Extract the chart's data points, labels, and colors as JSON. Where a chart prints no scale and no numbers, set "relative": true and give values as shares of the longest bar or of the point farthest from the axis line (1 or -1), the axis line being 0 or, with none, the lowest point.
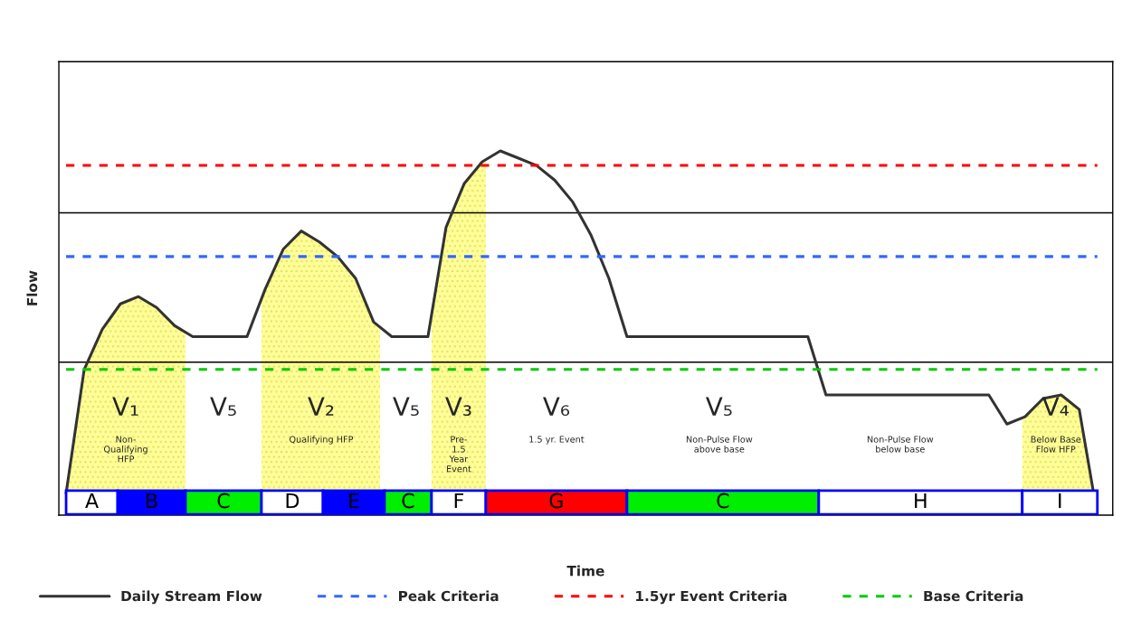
{
  "chart_data": {
    "type": "line",
    "relative": true,
    "xlabel": "Time",
    "ylabel": "Flow",
    "legend": "bottom",
    "categories": [
      null,
      null,
      null,
      null,
      null,
      null,
      null,
      null,
      null,
      null,
      null,
      null,
      null,
      null,
      null,
      null,
      null,
      null,
      null,
      null,
      null,
      null,
      null,
      null,
      null,
      null,
      null,
      null,
      null,
      null,
      null,
      null,
      null,
      null,
      null,
      null,
      null,
      null,
      null,
      null,
      null,
      null,
      null,
      null,
      null,
      null,
      null,
      null,
      null,
      null,
      null,
      null,
      null,
      null,
      null,
      null,
      null,
      null
    ],
    "series": [
      {
        "name": "Daily Stream Flow",
        "color": "#333333",
        "line_style": "solid",
        "values": [
          0.06,
          0.4,
          0.51,
          0.58,
          0.6,
          0.57,
          0.52,
          0.49,
          0.49,
          0.49,
          0.49,
          0.62,
          0.73,
          0.78,
          0.75,
          0.71,
          0.65,
          0.53,
          0.49,
          0.49,
          0.49,
          0.79,
          0.91,
          0.97,
          1,
          0.98,
          0.96,
          0.92,
          0.86,
          0.77,
          0.65,
          0.49,
          0.49,
          0.49,
          0.49,
          0.49,
          0.49,
          0.49,
          0.49,
          0.49,
          0.49,
          0.49,
          0.33,
          0.33,
          0.33,
          0.33,
          0.33,
          0.33,
          0.33,
          0.33,
          0.33,
          0.33,
          0.25,
          0.27,
          0.32,
          0.33,
          0.29,
          0
        ],
        "type": "line"
      },
      {
        "name": "Peak Criteria",
        "color": "#3366ff",
        "line_style": "dashed",
        "values": [
          0.71,
          0.71,
          0.71,
          0.71,
          0.71,
          0.71,
          0.71,
          0.71,
          0.71,
          0.71,
          0.71,
          0.71,
          0.71,
          0.71,
          0.71,
          0.71,
          0.71,
          0.71,
          0.71,
          0.71,
          0.71,
          0.71,
          0.71,
          0.71,
          0.71,
          0.71,
          0.71,
          0.71,
          0.71,
          0.71,
          0.71,
          0.71,
          0.71,
          0.71,
          0.71,
          0.71,
          0.71,
          0.71,
          0.71,
          0.71,
          0.71,
          0.71,
          0.71,
          0.71,
          0.71,
          0.71,
          0.71,
          0.71,
          0.71,
          0.71,
          0.71,
          0.71,
          0.71,
          0.71,
          0.71,
          0.71,
          0.71,
          0.71
        ]
      },
      {
        "name": "1.5yr Event Criteria",
        "color": "#ff0000",
        "line_style": "dashed",
        "values": [
          0.96,
          0.96,
          0.96,
          0.96,
          0.96,
          0.96,
          0.96,
          0.96,
          0.96,
          0.96,
          0.96,
          0.96,
          0.96,
          0.96,
          0.96,
          0.96,
          0.96,
          0.96,
          0.96,
          0.96,
          0.96,
          0.96,
          0.96,
          0.96,
          0.96,
          0.96,
          0.96,
          0.96,
          0.96,
          0.96,
          0.96,
          0.96,
          0.96,
          0.96,
          0.96,
          0.96,
          0.96,
          0.96,
          0.96,
          0.96,
          0.96,
          0.96,
          0.96,
          0.96,
          0.96,
          0.96,
          0.96,
          0.96,
          0.96,
          0.96,
          0.96,
          0.96,
          0.96,
          0.96,
          0.96,
          0.96,
          0.96,
          0.96
        ]
      },
      {
        "name": "Base Criteria",
        "color": "#00cc00",
        "line_style": "dashed",
        "values": [
          0.4,
          0.4,
          0.4,
          0.4,
          0.4,
          0.4,
          0.4,
          0.4,
          0.4,
          0.4,
          0.4,
          0.4,
          0.4,
          0.4,
          0.4,
          0.4,
          0.4,
          0.4,
          0.4,
          0.4,
          0.4,
          0.4,
          0.4,
          0.4,
          0.4,
          0.4,
          0.4,
          0.4,
          0.4,
          0.4,
          0.4,
          0.4,
          0.4,
          0.4,
          0.4,
          0.4,
          0.4,
          0.4,
          0.4,
          0.4,
          0.4,
          0.4,
          0.4,
          0.4,
          0.4,
          0.4,
          0.4,
          0.4,
          0.4,
          0.4,
          0.4,
          0.4,
          0.4,
          0.4,
          0.4,
          0.4,
          0.4,
          0.4
        ]
      }
    ],
    "ref_lines": [
      {
        "axis": "y",
        "value": 0.42,
        "color": "#000000",
        "line_style": "solid"
      },
      {
        "axis": "y",
        "value": 0.83,
        "color": "#000000",
        "line_style": "solid"
      }
    ],
    "annotations": [
      "V₁\nNon-\nQualifying\nHFP",
      "V₅",
      "V₂\nQualifying HFP",
      "V₅",
      "V₃\nPre-\n1.5\nYear\nEvent",
      "V₆\n1.5 yr. Event",
      "V₅\nNon-Pulse Flow\nabove base",
      "\nNon-Pulse Flow\nbelow base",
      "V₄\nBelow Base\nFlow HFP",
      "A",
      "B",
      "C",
      "D",
      "E",
      "C",
      "F",
      "G",
      "C",
      "H",
      "I"
    ]
  }
}
